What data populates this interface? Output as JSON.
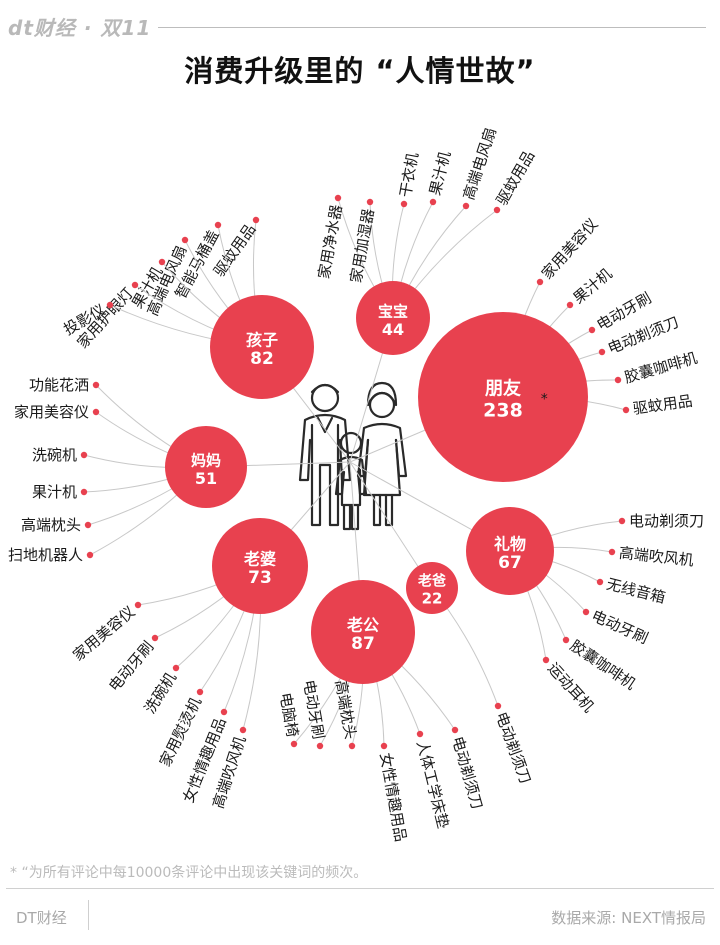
{
  "header": {
    "brand": "dt财经 · 双11",
    "title": "消费升级里的 “人情世故”"
  },
  "colors": {
    "bubble": "#e8414f",
    "line": "#c8c8c8",
    "dot": "#e8414f"
  },
  "figure_icon": "family-icon",
  "groups": [
    {
      "id": "kid",
      "name": "孩子",
      "value": "82",
      "items": [
        "驱蚊用品",
        "智能马桶盖",
        "高端电风扇",
        "果汁机",
        "家用护眼灯",
        "投影仪"
      ]
    },
    {
      "id": "baby",
      "name": "宝宝",
      "value": "44",
      "items": [
        "家用净水器",
        "家用加湿器",
        "干衣机",
        "果汁机",
        "高端电风扇",
        "驱蚊用品"
      ]
    },
    {
      "id": "friend",
      "name": "朋友",
      "value": "238",
      "mark": "*",
      "items": [
        "家用美容仪",
        "果汁机",
        "电动牙刷",
        "电动剃须刀",
        "胶囊咖啡机",
        "驱蚊用品"
      ]
    },
    {
      "id": "mom",
      "name": "妈妈",
      "value": "51",
      "items": [
        "功能花洒",
        "家用美容仪",
        "洗碗机",
        "果汁机",
        "高端枕头",
        "扫地机器人"
      ]
    },
    {
      "id": "gift",
      "name": "礼物",
      "value": "67",
      "items": [
        "电动剃须刀",
        "高端吹风机",
        "无线音箱",
        "电动牙刷",
        "胶囊咖啡机",
        "运动耳机"
      ]
    },
    {
      "id": "wife",
      "name": "老婆",
      "value": "73",
      "items": [
        "家用美容仪",
        "电动牙刷",
        "洗碗机",
        "家用熨烫机",
        "女性情趣用品",
        "高端吹风机"
      ]
    },
    {
      "id": "dad",
      "name": "老爸",
      "value": "22",
      "items": [
        "电动剃须刀"
      ]
    },
    {
      "id": "husband",
      "name": "老公",
      "value": "87",
      "items": [
        "电脑椅",
        "电动牙刷",
        "高端枕头",
        "女性情趣用品",
        "人体工学床垫",
        "电动剃须刀"
      ]
    }
  ],
  "footnote": "* “为所有评论中每10000条评论中出现该关键词的频次。",
  "footer": {
    "left": "DT财经",
    "right": "数据来源: NEXT情报局"
  }
}
